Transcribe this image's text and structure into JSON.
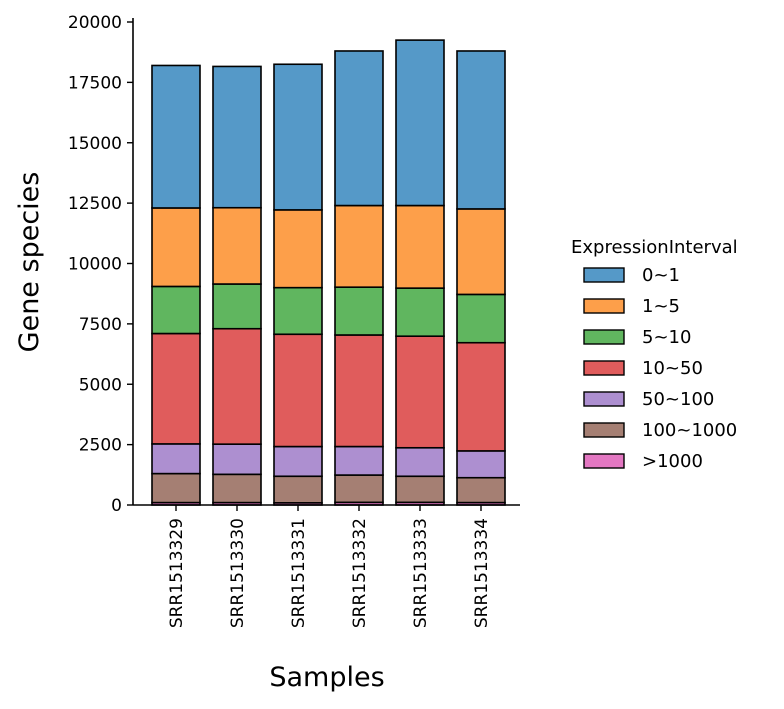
{
  "chart_data": {
    "type": "bar",
    "stacked": true,
    "xlabel": "Samples",
    "ylabel": "Gene species",
    "ylim": [
      0,
      20000
    ],
    "yticks": [
      0,
      2500,
      5000,
      7500,
      10000,
      12500,
      15000,
      17500,
      20000
    ],
    "categories": [
      "SRR1513329",
      "SRR1513330",
      "SRR1513331",
      "SRR1513332",
      "SRR1513333",
      "SRR1513334"
    ],
    "legend": {
      "title": "ExpressionInterval",
      "placement": "right"
    },
    "series": [
      {
        "name": ">1000",
        "color": "#e377c2",
        "values": [
          100,
          100,
          90,
          110,
          110,
          100
        ]
      },
      {
        "name": "100~1000",
        "color": "#a57f73",
        "values": [
          1200,
          1170,
          1100,
          1130,
          1080,
          1030
        ]
      },
      {
        "name": "50~100",
        "color": "#ad8fd0",
        "values": [
          1230,
          1250,
          1230,
          1180,
          1180,
          1110
        ]
      },
      {
        "name": "10~50",
        "color": "#e05c5c",
        "values": [
          4570,
          4780,
          4650,
          4620,
          4620,
          4480
        ]
      },
      {
        "name": "5~10",
        "color": "#60b65f",
        "values": [
          1950,
          1850,
          1930,
          1980,
          1990,
          2000
        ]
      },
      {
        "name": "1~5",
        "color": "#fd9f4a",
        "values": [
          3250,
          3160,
          3220,
          3380,
          3420,
          3540
        ]
      },
      {
        "name": "0~1",
        "color": "#5599c8",
        "values": [
          5900,
          5850,
          6030,
          6400,
          6850,
          6540
        ]
      }
    ],
    "legend_order": [
      "0~1",
      "1~5",
      "5~10",
      "10~50",
      "50~100",
      "100~1000",
      ">1000"
    ]
  }
}
